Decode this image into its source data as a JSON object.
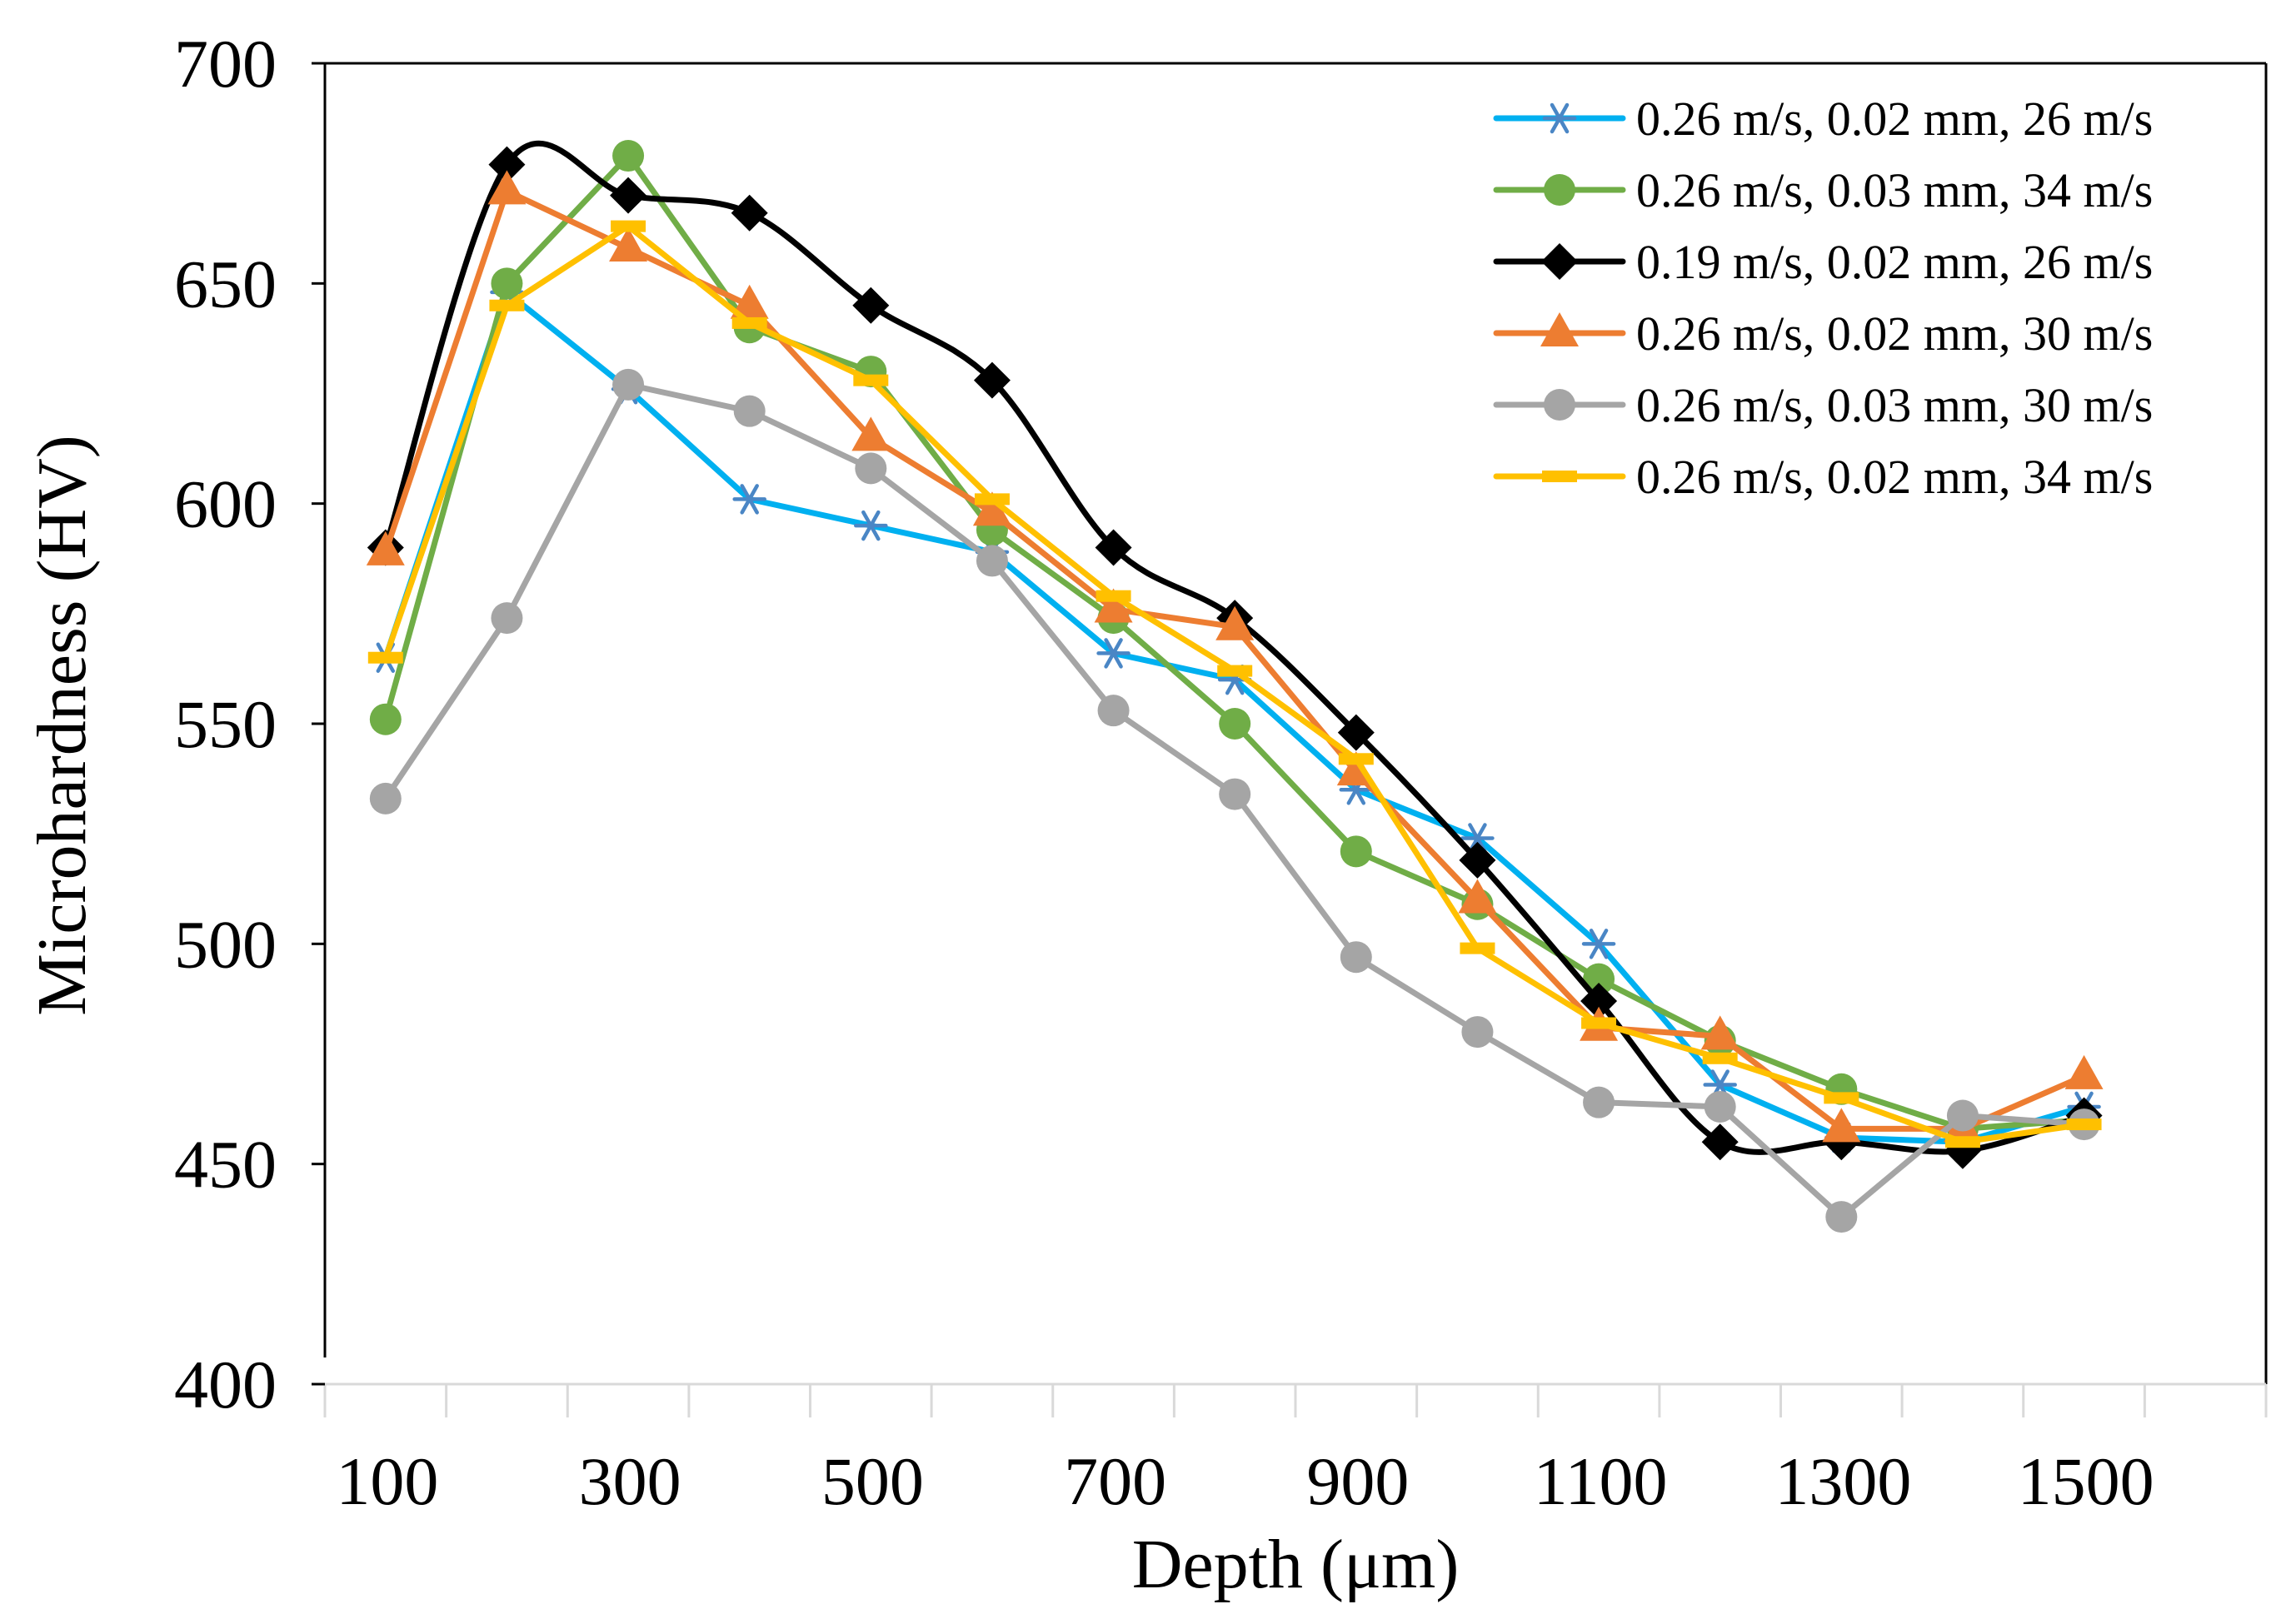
{
  "chart_data": {
    "type": "line",
    "xlabel": "Depth (μm)",
    "ylabel": "Microhardness (HV)",
    "xlim": [
      0,
      1600
    ],
    "ylim": [
      400,
      700
    ],
    "x_tick_labels": [
      "100",
      "300",
      "500",
      "700",
      "900",
      "1100",
      "1300",
      "1500"
    ],
    "y_tick_labels": [
      "400",
      "450",
      "500",
      "550",
      "600",
      "650",
      "700"
    ],
    "legend_position": "top-right",
    "grid": false,
    "x": [
      50,
      150,
      250,
      350,
      450,
      550,
      650,
      750,
      850,
      950,
      1050,
      1150,
      1250,
      1350,
      1450
    ],
    "series": [
      {
        "name": "0.26 m/s, 0.02 mm, 26 m/s",
        "color": "#00B0F0",
        "marker": "asterisk",
        "marker_color": "#4A86C5",
        "smooth": false,
        "values": [
          565,
          648,
          626,
          601,
          595,
          589,
          566,
          560,
          535,
          524,
          500,
          468,
          456,
          455,
          463
        ]
      },
      {
        "name": "0.26 m/s, 0.03 mm, 34 m/s",
        "color": "#70AD47",
        "marker": "circle",
        "marker_color": "#70AD47",
        "smooth": false,
        "values": [
          551,
          650,
          679,
          640,
          630,
          594,
          574,
          550,
          521,
          509,
          492,
          478,
          467,
          458,
          460
        ]
      },
      {
        "name": "0.19 m/s, 0.02 mm, 26 m/s",
        "color": "#000000",
        "marker": "diamond",
        "marker_color": "#000000",
        "smooth": true,
        "values": [
          590,
          677,
          670,
          666,
          645,
          628,
          590,
          574,
          548,
          519,
          487,
          455,
          455,
          453,
          461
        ]
      },
      {
        "name": "0.26 m/s, 0.02 mm, 30 m/s",
        "color": "#ED7D31",
        "marker": "triangle",
        "marker_color": "#ED7D31",
        "smooth": false,
        "values": [
          589,
          671,
          658,
          645,
          615,
          598,
          576,
          572,
          539,
          510,
          481,
          479,
          458,
          458,
          470
        ]
      },
      {
        "name": "0.26 m/s, 0.03 mm, 30 m/s",
        "color": "#A5A5A5",
        "marker": "circle",
        "marker_color": "#A5A5A5",
        "smooth": false,
        "values": [
          533,
          574,
          627,
          621,
          608,
          587,
          553,
          534,
          497,
          480,
          464,
          463,
          438,
          461,
          459
        ]
      },
      {
        "name": "0.26 m/s, 0.02 mm, 34 m/s",
        "color": "#FFC000",
        "marker": "dash",
        "marker_color": "#FFC000",
        "smooth": false,
        "values": [
          565,
          645,
          663,
          641,
          628,
          601,
          579,
          562,
          542,
          499,
          482,
          474,
          465,
          455,
          459
        ]
      }
    ]
  }
}
